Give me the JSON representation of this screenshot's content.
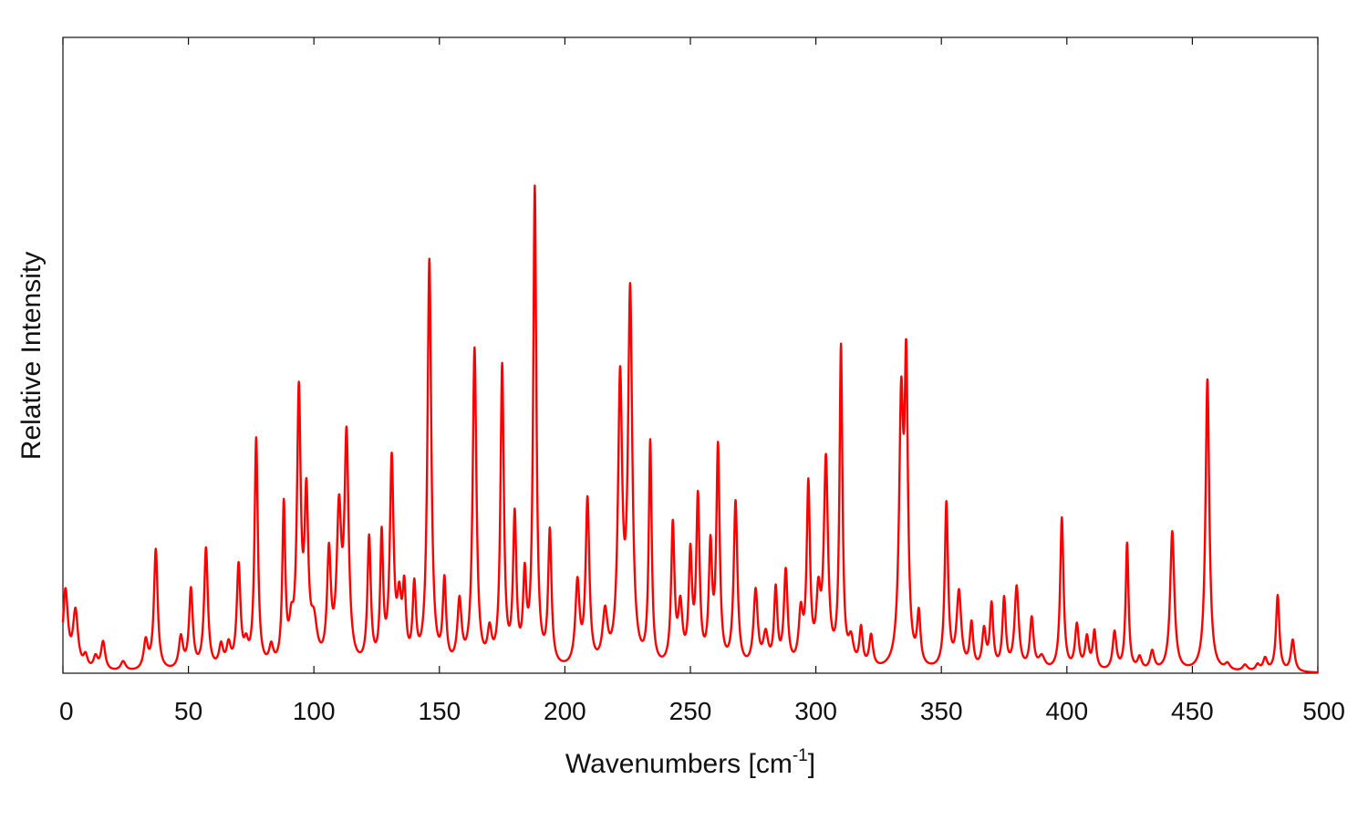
{
  "chart_data": {
    "type": "line",
    "title": "",
    "xlabel": "Wavenumbers [cm",
    "xlabel_sup": "-1",
    "xlabel_suffix": "]",
    "ylabel": "Relative Intensity",
    "xlim": [
      0,
      500
    ],
    "ylim": [
      0,
      1
    ],
    "x_ticks": [
      0,
      50,
      100,
      150,
      200,
      250,
      300,
      350,
      400,
      450,
      500
    ],
    "y_ticks_labeled": false,
    "grid": false,
    "line_color": "#ff0000",
    "series": [
      {
        "name": "",
        "peaks": [
          [
            1,
            0.125,
            1.2
          ],
          [
            5,
            0.09,
            1.2
          ],
          [
            9,
            0.02,
            1.0
          ],
          [
            13,
            0.02,
            1.0
          ],
          [
            16,
            0.045,
            1.0
          ],
          [
            24,
            0.015,
            1.2
          ],
          [
            33,
            0.045,
            1.0
          ],
          [
            37,
            0.19,
            0.9
          ],
          [
            47,
            0.05,
            1.0
          ],
          [
            51,
            0.125,
            0.9
          ],
          [
            57,
            0.19,
            0.9
          ],
          [
            63,
            0.035,
            1.0
          ],
          [
            66,
            0.035,
            1.0
          ],
          [
            70,
            0.16,
            0.9
          ],
          [
            73,
            0.03,
            1.0
          ],
          [
            77,
            0.36,
            0.8
          ],
          [
            83,
            0.03,
            1.0
          ],
          [
            88,
            0.25,
            0.7
          ],
          [
            91,
            0.05,
            1.0
          ],
          [
            94,
            0.42,
            0.9
          ],
          [
            97,
            0.25,
            0.9
          ],
          [
            100,
            0.06,
            1.5
          ],
          [
            106,
            0.17,
            0.9
          ],
          [
            110,
            0.23,
            1.1
          ],
          [
            113,
            0.35,
            1.0
          ],
          [
            122,
            0.2,
            0.8
          ],
          [
            127,
            0.2,
            0.7
          ],
          [
            131,
            0.32,
            0.9
          ],
          [
            134,
            0.09,
            1.0
          ],
          [
            136,
            0.11,
            0.8
          ],
          [
            140,
            0.12,
            0.8
          ],
          [
            146,
            0.64,
            0.9
          ],
          [
            152,
            0.13,
            0.8
          ],
          [
            158,
            0.1,
            1.0
          ],
          [
            164,
            0.5,
            0.9
          ],
          [
            170,
            0.05,
            1.0
          ],
          [
            175,
            0.47,
            0.8
          ],
          [
            180,
            0.23,
            0.8
          ],
          [
            184,
            0.13,
            0.8
          ],
          [
            188,
            0.75,
            0.75
          ],
          [
            194,
            0.21,
            0.8
          ],
          [
            205,
            0.13,
            1.0
          ],
          [
            209,
            0.26,
            0.9
          ],
          [
            216,
            0.08,
            1.2
          ],
          [
            222,
            0.44,
            1.0
          ],
          [
            226,
            0.58,
            1.0
          ],
          [
            234,
            0.35,
            0.7
          ],
          [
            243,
            0.22,
            0.8
          ],
          [
            246,
            0.09,
            1.0
          ],
          [
            250,
            0.17,
            0.8
          ],
          [
            253,
            0.26,
            0.8
          ],
          [
            258,
            0.18,
            0.8
          ],
          [
            261,
            0.34,
            0.8
          ],
          [
            268,
            0.26,
            0.9
          ],
          [
            276,
            0.12,
            1.0
          ],
          [
            280,
            0.05,
            1.2
          ],
          [
            284,
            0.12,
            0.8
          ],
          [
            288,
            0.15,
            0.9
          ],
          [
            294,
            0.08,
            1.0
          ],
          [
            297,
            0.28,
            0.8
          ],
          [
            301,
            0.1,
            1.0
          ],
          [
            304,
            0.32,
            1.0
          ],
          [
            310,
            0.5,
            0.7
          ],
          [
            314,
            0.04,
            1.2
          ],
          [
            318,
            0.06,
            0.8
          ],
          [
            322,
            0.05,
            0.9
          ],
          [
            334,
            0.4,
            1.0
          ],
          [
            336,
            0.44,
            0.8
          ],
          [
            341,
            0.08,
            0.8
          ],
          [
            352,
            0.26,
            0.8
          ],
          [
            357,
            0.12,
            1.1
          ],
          [
            362,
            0.07,
            0.8
          ],
          [
            367,
            0.06,
            0.9
          ],
          [
            370,
            0.1,
            0.8
          ],
          [
            375,
            0.11,
            0.8
          ],
          [
            380,
            0.13,
            1.0
          ],
          [
            386,
            0.08,
            0.9
          ],
          [
            390,
            0.02,
            1.5
          ],
          [
            398,
            0.24,
            0.8
          ],
          [
            404,
            0.07,
            0.9
          ],
          [
            408,
            0.05,
            0.9
          ],
          [
            411,
            0.06,
            0.8
          ],
          [
            419,
            0.06,
            0.9
          ],
          [
            424,
            0.2,
            0.7
          ],
          [
            429,
            0.02,
            1.0
          ],
          [
            434,
            0.03,
            1.0
          ],
          [
            442,
            0.22,
            1.0
          ],
          [
            456,
            0.46,
            0.9
          ],
          [
            464,
            0.01,
            1.2
          ],
          [
            471,
            0.01,
            1.2
          ],
          [
            476,
            0.01,
            1.0
          ],
          [
            479,
            0.02,
            1.0
          ],
          [
            484,
            0.12,
            0.8
          ],
          [
            490,
            0.05,
            0.9
          ]
        ]
      }
    ]
  }
}
